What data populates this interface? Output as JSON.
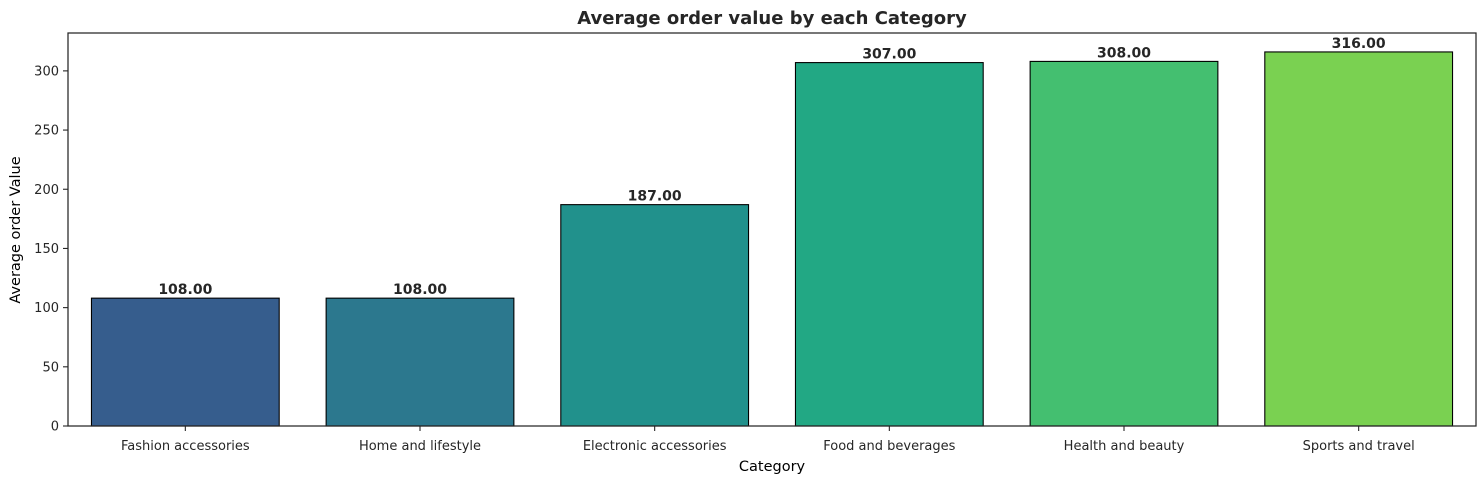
{
  "chart_data": {
    "type": "bar",
    "title": "Average order value by each Category",
    "xlabel": "Category",
    "ylabel": "Average order Value",
    "categories": [
      "Fashion accessories",
      "Home and lifestyle",
      "Electronic accessories",
      "Food and beverages",
      "Health and beauty",
      "Sports and travel"
    ],
    "values": [
      108,
      108,
      187,
      307,
      308,
      316
    ],
    "data_labels": [
      "108.00",
      "108.00",
      "187.00",
      "307.00",
      "308.00",
      "316.00"
    ],
    "colors": [
      "#365d8d",
      "#2c788e",
      "#21918c",
      "#22a884",
      "#44bf70",
      "#7ad151"
    ],
    "edge_color": "#000000",
    "ylim": [
      0,
      332
    ],
    "yticks": [
      0,
      50,
      100,
      150,
      200,
      250,
      300
    ],
    "grid": false,
    "legend": "none"
  }
}
